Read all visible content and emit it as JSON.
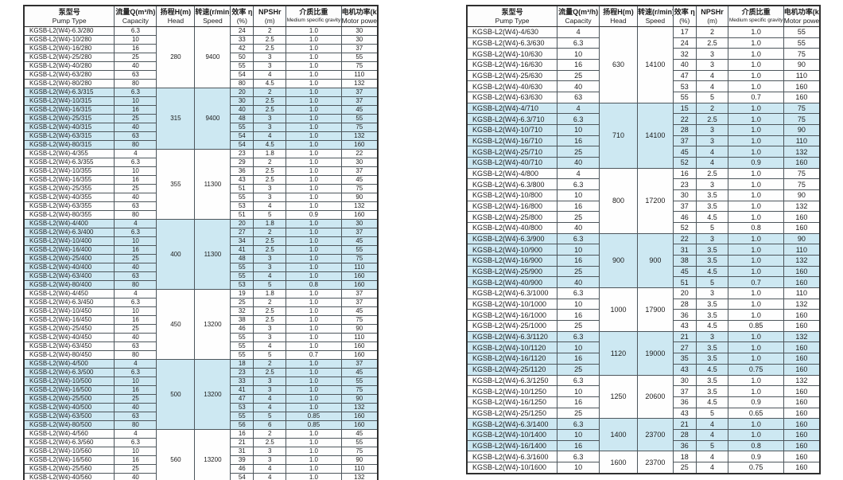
{
  "page": {
    "background": "#ffffff"
  },
  "colors": {
    "shaded_row": "#cde8f2",
    "border": "#4d565c",
    "outer_border": "#2f2f2f",
    "text": "#1b1b1b"
  },
  "table_header": {
    "columns": [
      {
        "zh": "泵型号",
        "en": "Pump Type"
      },
      {
        "zh": "流量Q(m³/h)",
        "en": "Capacity"
      },
      {
        "zh": "扬程H(m)",
        "en": "Head"
      },
      {
        "zh": "转速(r/min)",
        "en": "Speed"
      },
      {
        "zh": "效率 η",
        "en": "(%)"
      },
      {
        "zh": "NPSHr",
        "en": "(m)"
      },
      {
        "zh": "介质比重",
        "en": "Medium specific gravity"
      },
      {
        "zh": "电机功率(kW)",
        "en": "Motor power"
      }
    ]
  },
  "row_fields": [
    "model",
    "capacity",
    "efficiency_pct",
    "npshr_m",
    "medium_specific_gravity",
    "motor_power_kw"
  ],
  "tables": [
    {
      "name": "left",
      "groups": [
        {
          "head": "280",
          "speed": "9400",
          "shaded": false,
          "rows": [
            [
              "KGSB-L2(W4)-6.3/280",
              "6.3",
              "24",
              "2",
              "1.0",
              "30"
            ],
            [
              "KGSB-L2(W4)-10/280",
              "10",
              "33",
              "2.5",
              "1.0",
              "30"
            ],
            [
              "KGSB-L2(W4)-16/280",
              "16",
              "42",
              "2.5",
              "1.0",
              "37"
            ],
            [
              "KGSB-L2(W4)-25/280",
              "25",
              "50",
              "3",
              "1.0",
              "55"
            ],
            [
              "KGSB-L2(W4)-40/280",
              "40",
              "55",
              "3",
              "1.0",
              "75"
            ],
            [
              "KGSB-L2(W4)-63/280",
              "63",
              "54",
              "4",
              "1.0",
              "110"
            ],
            [
              "KGSB-L2(W4)-80/280",
              "80",
              "80",
              "4.5",
              "1.0",
              "132"
            ]
          ]
        },
        {
          "head": "315",
          "speed": "9400",
          "shaded": true,
          "rows": [
            [
              "KGSB-L2(W4)-6.3/315",
              "6.3",
              "20",
              "2",
              "1.0",
              "37"
            ],
            [
              "KGSB-L2(W4)-10/315",
              "10",
              "30",
              "2.5",
              "1.0",
              "37"
            ],
            [
              "KGSB-L2(W4)-16/315",
              "16",
              "40",
              "2.5",
              "1.0",
              "45"
            ],
            [
              "KGSB-L2(W4)-25/315",
              "25",
              "48",
              "3",
              "1.0",
              "55"
            ],
            [
              "KGSB-L2(W4)-40/315",
              "40",
              "55",
              "3",
              "1.0",
              "75"
            ],
            [
              "KGSB-L2(W4)-63/315",
              "63",
              "54",
              "4",
              "1.0",
              "132"
            ],
            [
              "KGSB-L2(W4)-80/315",
              "80",
              "54",
              "4.5",
              "1.0",
              "160"
            ]
          ]
        },
        {
          "head": "355",
          "speed": "11300",
          "shaded": false,
          "rows": [
            [
              "KGSB-L2(W4)-4/355",
              "4",
              "23",
              "1.8",
              "1.0",
              "22"
            ],
            [
              "KGSB-L2(W4)-6.3/355",
              "6.3",
              "29",
              "2",
              "1.0",
              "30"
            ],
            [
              "KGSB-L2(W4)-10/355",
              "10",
              "36",
              "2.5",
              "1.0",
              "37"
            ],
            [
              "KGSB-L2(W4)-16/355",
              "16",
              "43",
              "2.5",
              "1.0",
              "45"
            ],
            [
              "KGSB-L2(W4)-25/355",
              "25",
              "51",
              "3",
              "1.0",
              "75"
            ],
            [
              "KGSB-L2(W4)-40/355",
              "40",
              "55",
              "3",
              "1.0",
              "90"
            ],
            [
              "KGSB-L2(W4)-63/355",
              "63",
              "53",
              "4",
              "1.0",
              "132"
            ],
            [
              "KGSB-L2(W4)-80/355",
              "80",
              "51",
              "5",
              "0.9",
              "160"
            ]
          ]
        },
        {
          "head": "400",
          "speed": "11300",
          "shaded": true,
          "rows": [
            [
              "KGSB-L2(W4)-4/400",
              "4",
              "20",
              "1.8",
              "1.0",
              "30"
            ],
            [
              "KGSB-L2(W4)-6.3/400",
              "6.3",
              "27",
              "2",
              "1.0",
              "37"
            ],
            [
              "KGSB-L2(W4)-10/400",
              "10",
              "34",
              "2.5",
              "1.0",
              "45"
            ],
            [
              "KGSB-L2(W4)-16/400",
              "16",
              "41",
              "2.5",
              "1.0",
              "55"
            ],
            [
              "KGSB-L2(W4)-25/400",
              "25",
              "48",
              "3",
              "1.0",
              "75"
            ],
            [
              "KGSB-L2(W4)-40/400",
              "40",
              "55",
              "3",
              "1.0",
              "110"
            ],
            [
              "KGSB-L2(W4)-63/400",
              "63",
              "55",
              "4",
              "1.0",
              "160"
            ],
            [
              "KGSB-L2(W4)-80/400",
              "80",
              "53",
              "5",
              "0.8",
              "160"
            ]
          ]
        },
        {
          "head": "450",
          "speed": "13200",
          "shaded": false,
          "rows": [
            [
              "KGSB-L2(W4)-4/450",
              "4",
              "19",
              "1.8",
              "1.0",
              "37"
            ],
            [
              "KGSB-L2(W4)-6.3/450",
              "6.3",
              "25",
              "2",
              "1.0",
              "37"
            ],
            [
              "KGSB-L2(W4)-10/450",
              "10",
              "32",
              "2.5",
              "1.0",
              "45"
            ],
            [
              "KGSB-L2(W4)-16/450",
              "16",
              "38",
              "2.5",
              "1.0",
              "75"
            ],
            [
              "KGSB-L2(W4)-25/450",
              "25",
              "46",
              "3",
              "1.0",
              "90"
            ],
            [
              "KGSB-L2(W4)-40/450",
              "40",
              "55",
              "3",
              "1.0",
              "110"
            ],
            [
              "KGSB-L2(W4)-63/450",
              "63",
              "55",
              "4",
              "1.0",
              "160"
            ],
            [
              "KGSB-L2(W4)-80/450",
              "80",
              "55",
              "5",
              "0.7",
              "160"
            ]
          ]
        },
        {
          "head": "500",
          "speed": "13200",
          "shaded": true,
          "rows": [
            [
              "KGSB-L2(W4)-4/500",
              "4",
              "18",
              "2",
              "1.0",
              "37"
            ],
            [
              "KGSB-L2(W4)-6.3/500",
              "6.3",
              "23",
              "2.5",
              "1.0",
              "45"
            ],
            [
              "KGSB-L2(W4)-10/500",
              "10",
              "33",
              "3",
              "1.0",
              "55"
            ],
            [
              "KGSB-L2(W4)-16/500",
              "16",
              "41",
              "3",
              "1.0",
              "75"
            ],
            [
              "KGSB-L2(W4)-25/500",
              "25",
              "47",
              "4",
              "1.0",
              "90"
            ],
            [
              "KGSB-L2(W4)-40/500",
              "40",
              "53",
              "4",
              "1.0",
              "132"
            ],
            [
              "KGSB-L2(W4)-63/500",
              "63",
              "55",
              "5",
              "0.85",
              "160"
            ],
            [
              "KGSB-L2(W4)-80/500",
              "80",
              "56",
              "6",
              "0.85",
              "160"
            ]
          ]
        },
        {
          "head": "560",
          "speed": "13200",
          "shaded": false,
          "rows": [
            [
              "KGSB-L2(W4)-4/560",
              "4",
              "16",
              "2",
              "1.0",
              "45"
            ],
            [
              "KGSB-L2(W4)-6.3/560",
              "6.3",
              "21",
              "2.5",
              "1.0",
              "55"
            ],
            [
              "KGSB-L2(W4)-10/560",
              "10",
              "31",
              "3",
              "1.0",
              "75"
            ],
            [
              "KGSB-L2(W4)-16/560",
              "16",
              "39",
              "3",
              "1.0",
              "90"
            ],
            [
              "KGSB-L2(W4)-25/560",
              "25",
              "46",
              "4",
              "1.0",
              "110"
            ],
            [
              "KGSB-L2(W4)-40/560",
              "40",
              "54",
              "4",
              "1.0",
              "132"
            ],
            [
              "KGSB-L2(W4)-63/560",
              "63",
              "56",
              "5",
              "0.75",
              "160"
            ]
          ]
        }
      ]
    },
    {
      "name": "right",
      "groups": [
        {
          "head": "630",
          "speed": "14100",
          "shaded": false,
          "rows": [
            [
              "KGSB-L2(W4)-4/630",
              "4",
              "17",
              "2",
              "1.0",
              "55"
            ],
            [
              "KGSB-L2(W4)-6.3/630",
              "6.3",
              "24",
              "2.5",
              "1.0",
              "55"
            ],
            [
              "KGSB-L2(W4)-10/630",
              "10",
              "32",
              "3",
              "1.0",
              "75"
            ],
            [
              "KGSB-L2(W4)-16/630",
              "16",
              "40",
              "3",
              "1.0",
              "90"
            ],
            [
              "KGSB-L2(W4)-25/630",
              "25",
              "47",
              "4",
              "1.0",
              "110"
            ],
            [
              "KGSB-L2(W4)-40/630",
              "40",
              "53",
              "4",
              "1.0",
              "160"
            ],
            [
              "KGSB-L2(W4)-63/630",
              "63",
              "55",
              "5",
              "0.7",
              "160"
            ]
          ]
        },
        {
          "head": "710",
          "speed": "14100",
          "shaded": true,
          "rows": [
            [
              "KGSB-L2(W4)-4/710",
              "4",
              "15",
              "2",
              "1.0",
              "75"
            ],
            [
              "KGSB-L2(W4)-6.3/710",
              "6.3",
              "22",
              "2.5",
              "1.0",
              "75"
            ],
            [
              "KGSB-L2(W4)-10/710",
              "10",
              "28",
              "3",
              "1.0",
              "90"
            ],
            [
              "KGSB-L2(W4)-16/710",
              "16",
              "37",
              "3",
              "1.0",
              "110"
            ],
            [
              "KGSB-L2(W4)-25/710",
              "25",
              "45",
              "4",
              "1.0",
              "132"
            ],
            [
              "KGSB-L2(W4)-40/710",
              "40",
              "52",
              "4",
              "0.9",
              "160"
            ]
          ]
        },
        {
          "head": "800",
          "speed": "17200",
          "shaded": false,
          "rows": [
            [
              "KGSB-L2(W4)-4/800",
              "4",
              "16",
              "2.5",
              "1.0",
              "75"
            ],
            [
              "KGSB-L2(W4)-6.3/800",
              "6.3",
              "23",
              "3",
              "1.0",
              "75"
            ],
            [
              "KGSB-L2(W4)-10/800",
              "10",
              "30",
              "3.5",
              "1.0",
              "90"
            ],
            [
              "KGSB-L2(W4)-16/800",
              "16",
              "37",
              "3.5",
              "1.0",
              "132"
            ],
            [
              "KGSB-L2(W4)-25/800",
              "25",
              "46",
              "4.5",
              "1.0",
              "160"
            ],
            [
              "KGSB-L2(W4)-40/800",
              "40",
              "52",
              "5",
              "0.8",
              "160"
            ]
          ]
        },
        {
          "head": "900",
          "speed": "900",
          "shaded": true,
          "rows": [
            [
              "KGSB-L2(W4)-6.3/900",
              "6.3",
              "22",
              "3",
              "1.0",
              "90"
            ],
            [
              "KGSB-L2(W4)-10/900",
              "10",
              "31",
              "3.5",
              "1.0",
              "110"
            ],
            [
              "KGSB-L2(W4)-16/900",
              "16",
              "38",
              "3.5",
              "1.0",
              "132"
            ],
            [
              "KGSB-L2(W4)-25/900",
              "25",
              "45",
              "4.5",
              "1.0",
              "160"
            ],
            [
              "KGSB-L2(W4)-40/900",
              "40",
              "51",
              "5",
              "0.7",
              "160"
            ]
          ]
        },
        {
          "head": "1000",
          "speed": "17900",
          "shaded": false,
          "rows": [
            [
              "KGSB-L2(W4)-6.3/1000",
              "6.3",
              "20",
              "3",
              "1.0",
              "110"
            ],
            [
              "KGSB-L2(W4)-10/1000",
              "10",
              "28",
              "3.5",
              "1.0",
              "132"
            ],
            [
              "KGSB-L2(W4)-16/1000",
              "16",
              "36",
              "3.5",
              "1.0",
              "160"
            ],
            [
              "KGSB-L2(W4)-25/1000",
              "25",
              "43",
              "4.5",
              "0.85",
              "160"
            ]
          ]
        },
        {
          "head": "1120",
          "speed": "19000",
          "shaded": true,
          "rows": [
            [
              "KGSB-L2(W4)-6.3/1120",
              "6.3",
              "21",
              "3",
              "1.0",
              "132"
            ],
            [
              "KGSB-L2(W4)-10/1120",
              "10",
              "27",
              "3.5",
              "1.0",
              "160"
            ],
            [
              "KGSB-L2(W4)-16/1120",
              "16",
              "35",
              "3.5",
              "1.0",
              "160"
            ],
            [
              "KGSB-L2(W4)-25/1120",
              "25",
              "43",
              "4.5",
              "0.75",
              "160"
            ]
          ]
        },
        {
          "head": "1250",
          "speed": "20600",
          "shaded": false,
          "rows": [
            [
              "KGSB-L2(W4)-6.3/1250",
              "6.3",
              "30",
              "3.5",
              "1.0",
              "132"
            ],
            [
              "KGSB-L2(W4)-10/1250",
              "10",
              "37",
              "3.5",
              "1.0",
              "160"
            ],
            [
              "KGSB-L2(W4)-16/1250",
              "16",
              "36",
              "4.5",
              "0.9",
              "160"
            ],
            [
              "KGSB-L2(W4)-25/1250",
              "25",
              "43",
              "5",
              "0.65",
              "160"
            ]
          ]
        },
        {
          "head": "1400",
          "speed": "23700",
          "shaded": true,
          "rows": [
            [
              "KGSB-L2(W4)-6.3/1400",
              "6.3",
              "21",
              "4",
              "1.0",
              "160"
            ],
            [
              "KGSB-L2(W4)-10/1400",
              "10",
              "28",
              "4",
              "1.0",
              "160"
            ],
            [
              "KGSB-L2(W4)-16/1400",
              "16",
              "36",
              "5",
              "0.8",
              "160"
            ]
          ]
        },
        {
          "head": "1600",
          "speed": "23700",
          "shaded": false,
          "rows": [
            [
              "KGSB-L2(W4)-6.3/1600",
              "6.3",
              "18",
              "4",
              "0.9",
              "160"
            ],
            [
              "KGSB-L2(W4)-10/1600",
              "10",
              "25",
              "4",
              "0.75",
              "160"
            ]
          ]
        }
      ]
    }
  ]
}
